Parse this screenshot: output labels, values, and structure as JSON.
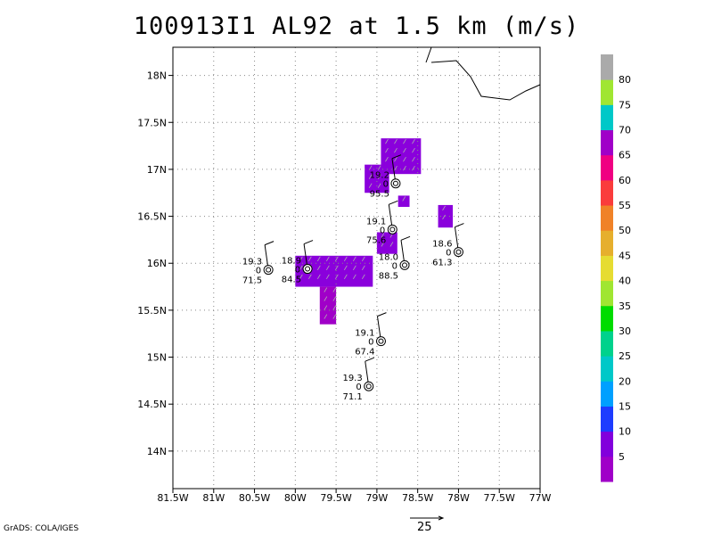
{
  "title": "100913I1  AL92  at  1.5  km  (m/s)",
  "credit": "GrADS: COLA/IGES",
  "scale_vector_label": "25",
  "map": {
    "lon_range": [
      -81.5,
      -77
    ],
    "lat_range": [
      13.6,
      18.3
    ],
    "lon_ticks": [
      {
        "v": -81.5,
        "label": "81.5W"
      },
      {
        "v": -81,
        "label": "81W"
      },
      {
        "v": -80.5,
        "label": "80.5W"
      },
      {
        "v": -80,
        "label": "80W"
      },
      {
        "v": -79.5,
        "label": "79.5W"
      },
      {
        "v": -79,
        "label": "79W"
      },
      {
        "v": -78.5,
        "label": "78.5W"
      },
      {
        "v": -78,
        "label": "78W"
      },
      {
        "v": -77.5,
        "label": "77.5W"
      },
      {
        "v": -77,
        "label": "77W"
      }
    ],
    "lat_ticks": [
      {
        "v": 14,
        "label": "14N"
      },
      {
        "v": 14.5,
        "label": "14.5N"
      },
      {
        "v": 15,
        "label": "15N"
      },
      {
        "v": 15.5,
        "label": "15.5N"
      },
      {
        "v": 16,
        "label": "16N"
      },
      {
        "v": 16.5,
        "label": "16.5N"
      },
      {
        "v": 17,
        "label": "17N"
      },
      {
        "v": 17.5,
        "label": "17.5N"
      },
      {
        "v": 18,
        "label": "18N"
      }
    ]
  },
  "stations": [
    {
      "lon": -78.77,
      "lat": 16.85,
      "top": "19.2",
      "mid": "0",
      "bottom": "95.5"
    },
    {
      "lon": -78.81,
      "lat": 16.36,
      "top": "19.1",
      "mid": "0",
      "bottom": "75.6"
    },
    {
      "lon": -78.66,
      "lat": 15.98,
      "top": "18.0",
      "mid": "0",
      "bottom": "88.5"
    },
    {
      "lon": -78.0,
      "lat": 16.12,
      "top": "18.6",
      "mid": "0",
      "bottom": "61.3"
    },
    {
      "lon": -80.33,
      "lat": 15.93,
      "top": "19.3",
      "mid": "0",
      "bottom": "71.5"
    },
    {
      "lon": -79.85,
      "lat": 15.94,
      "top": "18.9",
      "mid": "0",
      "bottom": "84.5"
    },
    {
      "lon": -78.95,
      "lat": 15.17,
      "top": "19.1",
      "mid": "0",
      "bottom": "67.4"
    },
    {
      "lon": -79.1,
      "lat": 14.69,
      "top": "19.3",
      "mid": "0",
      "bottom": "71.1"
    }
  ],
  "wind_regions": [
    {
      "color": "#8a00dc",
      "lon": [
        -78.95,
        -78.46
      ],
      "lat": [
        16.95,
        17.33
      ]
    },
    {
      "color": "#8a00dc",
      "lon": [
        -79.15,
        -78.85
      ],
      "lat": [
        16.75,
        17.05
      ]
    },
    {
      "color": "#8a00dc",
      "lon": [
        -78.74,
        -78.6
      ],
      "lat": [
        16.6,
        16.72
      ]
    },
    {
      "color": "#8a00dc",
      "lon": [
        -78.25,
        -78.07
      ],
      "lat": [
        16.38,
        16.62
      ]
    },
    {
      "color": "#8a00dc",
      "lon": [
        -79.0,
        -78.75
      ],
      "lat": [
        16.1,
        16.33
      ]
    },
    {
      "color": "#8a00dc",
      "lon": [
        -80.0,
        -79.05
      ],
      "lat": [
        15.75,
        16.08
      ]
    },
    {
      "color": "#a000c8",
      "lon": [
        -79.7,
        -79.5
      ],
      "lat": [
        15.35,
        15.75
      ]
    }
  ],
  "colorbar": {
    "colors": [
      "#a000c8",
      "#8200dc",
      "#1e3cff",
      "#00a0ff",
      "#00c8c8",
      "#00d28c",
      "#00dc00",
      "#a0e632",
      "#e6dc32",
      "#e6af2d",
      "#f08228",
      "#fa3c3c",
      "#f00082",
      "#a000c8",
      "#00c8c8",
      "#a0e632",
      "#aaaaaa"
    ],
    "labels": [
      "5",
      "10",
      "15",
      "20",
      "25",
      "30",
      "35",
      "40",
      "45",
      "50",
      "55",
      "60",
      "65",
      "70",
      "75",
      "80"
    ]
  }
}
